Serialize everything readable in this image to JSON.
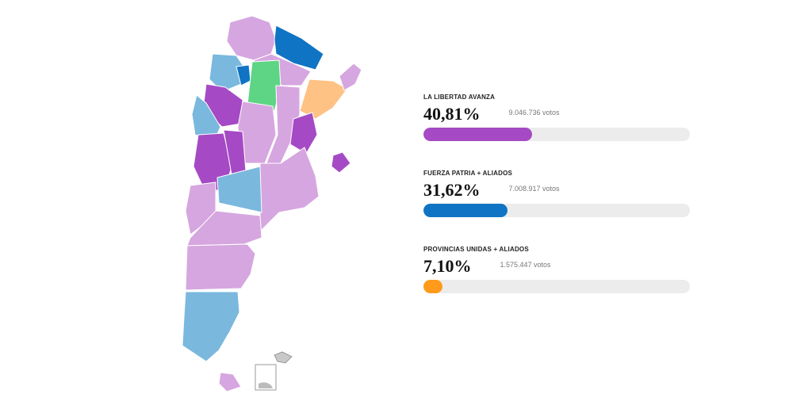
{
  "chart_data": {
    "type": "bar",
    "orientation": "horizontal",
    "scale_max_percent": 100,
    "series": [
      {
        "name": "LA LIBERTAD AVANZA",
        "percent_label": "40,81%",
        "value": 40.81,
        "votes_label": "9.046.736 votos",
        "color": "#a54ac4"
      },
      {
        "name": "FUERZA PATRIA + ALIADOS",
        "percent_label": "31,62%",
        "value": 31.62,
        "votes_label": "7.008.917 votos",
        "color": "#0f74c4"
      },
      {
        "name": "PROVINCIAS UNIDAS + ALIADOS",
        "percent_label": "7,10%",
        "value": 7.1,
        "votes_label": "1.575.447 votos",
        "color": "#ff9a1a"
      }
    ]
  },
  "map": {
    "legend_colors": {
      "lla_light": "#d6a6e0",
      "lla_dark": "#a54ac4",
      "fp_light": "#7ab8de",
      "fp_dark": "#0f74c4",
      "pu_light": "#ffc285",
      "other": "#5ed584"
    }
  }
}
